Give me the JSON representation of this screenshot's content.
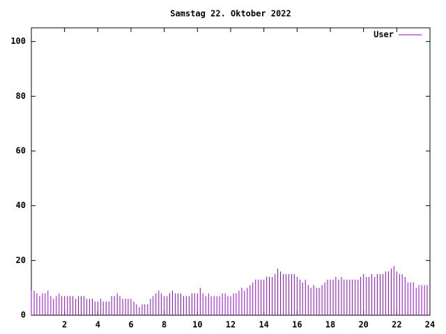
{
  "chart_data": {
    "type": "impulses",
    "title": "Samstag 22. Oktober 2022",
    "xlim": [
      0,
      24
    ],
    "xticks": [
      2,
      4,
      6,
      8,
      10,
      12,
      14,
      16,
      18,
      20,
      22,
      24
    ],
    "ylim": [
      0,
      105
    ],
    "yticks": [
      0,
      20,
      40,
      60,
      80,
      100
    ],
    "legend": "top-right",
    "x": [
      0,
      0.17,
      0.33,
      0.5,
      0.67,
      0.83,
      1,
      1.17,
      1.33,
      1.5,
      1.67,
      1.83,
      2,
      2.17,
      2.33,
      2.5,
      2.67,
      2.83,
      3,
      3.17,
      3.33,
      3.5,
      3.67,
      3.83,
      4,
      4.17,
      4.33,
      4.5,
      4.67,
      4.83,
      5,
      5.17,
      5.33,
      5.5,
      5.67,
      5.83,
      6,
      6.17,
      6.33,
      6.5,
      6.67,
      6.83,
      7,
      7.17,
      7.33,
      7.5,
      7.67,
      7.83,
      8,
      8.17,
      8.33,
      8.5,
      8.67,
      8.83,
      9,
      9.17,
      9.33,
      9.5,
      9.67,
      9.83,
      10,
      10.17,
      10.33,
      10.5,
      10.67,
      10.83,
      11,
      11.17,
      11.33,
      11.5,
      11.67,
      11.83,
      12,
      12.17,
      12.33,
      12.5,
      12.67,
      12.83,
      13,
      13.17,
      13.33,
      13.5,
      13.67,
      13.83,
      14,
      14.17,
      14.33,
      14.5,
      14.67,
      14.83,
      15,
      15.17,
      15.33,
      15.5,
      15.67,
      15.83,
      16,
      16.17,
      16.33,
      16.5,
      16.67,
      16.83,
      17,
      17.17,
      17.33,
      17.5,
      17.67,
      17.83,
      18,
      18.17,
      18.33,
      18.5,
      18.67,
      18.83,
      19,
      19.17,
      19.33,
      19.5,
      19.67,
      19.83,
      20,
      20.17,
      20.33,
      20.5,
      20.67,
      20.83,
      21,
      21.17,
      21.33,
      21.5,
      21.67,
      21.83,
      22,
      22.17,
      22.33,
      22.5,
      22.67,
      22.83,
      23,
      23.17,
      23.33,
      23.5,
      23.67,
      23.83
    ],
    "series": [
      {
        "name": "User",
        "color": "#9400d3",
        "values": [
          9,
          9,
          8,
          7,
          8,
          8,
          9,
          7,
          6,
          7,
          8,
          7,
          7,
          7,
          7,
          7,
          6,
          7,
          7,
          7,
          6,
          6,
          6,
          5,
          5,
          6,
          5,
          5,
          5,
          7,
          7,
          8,
          7,
          6,
          6,
          6,
          6,
          5,
          4,
          3,
          4,
          4,
          4,
          6,
          7,
          8,
          9,
          8,
          7,
          7,
          8,
          9,
          8,
          8,
          8,
          7,
          7,
          7,
          8,
          8,
          8,
          10,
          8,
          7,
          8,
          7,
          7,
          7,
          7,
          8,
          8,
          7,
          7,
          8,
          8,
          9,
          10,
          9,
          10,
          11,
          12,
          13,
          13,
          13,
          13,
          14,
          14,
          14,
          15,
          17,
          16,
          15,
          15,
          15,
          15,
          15,
          14,
          13,
          12,
          13,
          11,
          10,
          11,
          10,
          10,
          11,
          12,
          13,
          13,
          13,
          14,
          13,
          14,
          13,
          13,
          13,
          13,
          13,
          13,
          14,
          15,
          14,
          14,
          15,
          14,
          15,
          15,
          15,
          16,
          16,
          17,
          18,
          16,
          15,
          15,
          14,
          12,
          12,
          12,
          10,
          11,
          11,
          11,
          11
        ]
      }
    ]
  }
}
